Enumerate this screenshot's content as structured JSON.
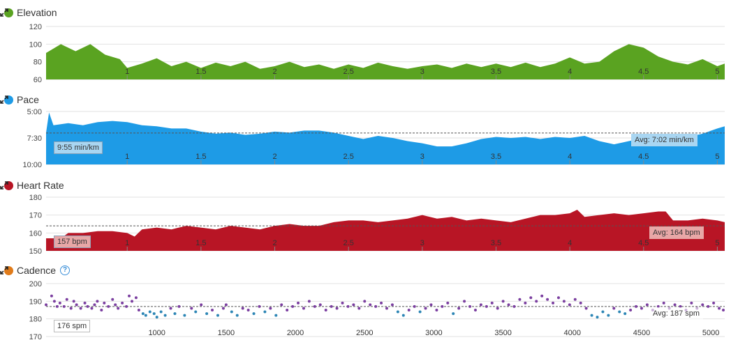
{
  "colors": {
    "elevation": "#5aa321",
    "pace": "#1e9be6",
    "heart_rate": "#b81525",
    "cadence_dot": "#e07b1a",
    "cadence_purple": "#7b3fa0",
    "cadence_blue": "#2d86b5"
  },
  "panels": {
    "elevation": {
      "title": "Elevation"
    },
    "pace": {
      "title": "Pace",
      "tooltip": "9:55 min/km",
      "avg_label": "Avg: 7:02 min/km"
    },
    "heart_rate": {
      "title": "Heart Rate",
      "tooltip": "157 bpm",
      "avg_label": "Avg: 164 bpm"
    },
    "cadence": {
      "title": "Cadence",
      "help": "?",
      "tooltip": "176 spm",
      "avg_label": "Avg: 187 spm"
    }
  },
  "chart_data": [
    {
      "type": "area",
      "title": "Elevation",
      "ylim": [
        60,
        120
      ],
      "yticks": [
        "120",
        "100",
        "80",
        "60"
      ],
      "xticks": [
        "1",
        "1.5",
        "2",
        "2.5",
        "3",
        "3.5",
        "4",
        "4.5",
        "5"
      ],
      "xlim": [
        0.45,
        5.05
      ],
      "x": [
        0.45,
        0.55,
        0.65,
        0.75,
        0.85,
        0.95,
        1.0,
        1.1,
        1.2,
        1.3,
        1.4,
        1.5,
        1.6,
        1.7,
        1.8,
        1.9,
        2.0,
        2.1,
        2.2,
        2.3,
        2.4,
        2.5,
        2.6,
        2.7,
        2.8,
        2.9,
        3.0,
        3.1,
        3.2,
        3.3,
        3.4,
        3.5,
        3.6,
        3.7,
        3.8,
        3.9,
        4.0,
        4.1,
        4.2,
        4.3,
        4.4,
        4.5,
        4.6,
        4.7,
        4.8,
        4.9,
        5.0,
        5.05
      ],
      "values": [
        90,
        100,
        92,
        100,
        88,
        83,
        73,
        78,
        84,
        75,
        80,
        73,
        79,
        75,
        80,
        72,
        75,
        80,
        74,
        77,
        72,
        77,
        73,
        79,
        75,
        72,
        75,
        77,
        73,
        78,
        74,
        78,
        74,
        79,
        74,
        78,
        85,
        78,
        80,
        92,
        100,
        96,
        86,
        80,
        77,
        83,
        75,
        78
      ]
    },
    {
      "type": "area",
      "title": "Pace",
      "ylim_labels": [
        "5:00",
        "7:30",
        "10:00"
      ],
      "ylim_minutes": [
        5.0,
        10.0
      ],
      "inverted": true,
      "average": "7:02",
      "xticks": [
        "1",
        "1.5",
        "2",
        "2.5",
        "3",
        "3.5",
        "4",
        "4.5",
        "5"
      ],
      "xlim": [
        0.45,
        5.05
      ],
      "x": [
        0.45,
        0.47,
        0.5,
        0.6,
        0.7,
        0.8,
        0.9,
        1.0,
        1.1,
        1.2,
        1.3,
        1.4,
        1.5,
        1.6,
        1.7,
        1.8,
        1.9,
        2.0,
        2.1,
        2.2,
        2.3,
        2.4,
        2.5,
        2.6,
        2.7,
        2.8,
        2.9,
        3.0,
        3.1,
        3.2,
        3.3,
        3.4,
        3.5,
        3.6,
        3.7,
        3.8,
        3.9,
        4.0,
        4.1,
        4.2,
        4.3,
        4.4,
        4.5,
        4.6,
        4.7,
        4.8,
        4.9,
        5.0,
        5.05
      ],
      "values": [
        7.0,
        5.1,
        6.3,
        6.1,
        6.3,
        6.0,
        5.9,
        6.0,
        6.3,
        6.4,
        6.6,
        6.6,
        6.9,
        7.1,
        7.0,
        7.2,
        7.1,
        6.9,
        7.0,
        6.8,
        6.8,
        7.0,
        7.3,
        7.6,
        7.3,
        7.5,
        7.8,
        8.0,
        8.3,
        8.3,
        8.0,
        7.6,
        7.4,
        7.5,
        7.4,
        7.6,
        7.4,
        7.5,
        7.3,
        7.8,
        8.1,
        7.8,
        7.5,
        7.4,
        7.5,
        7.4,
        7.1,
        6.6,
        6.4
      ]
    },
    {
      "type": "area",
      "title": "Heart Rate",
      "ylim": [
        150,
        180
      ],
      "yticks": [
        "180",
        "170",
        "160",
        "150"
      ],
      "average": 164,
      "xticks": [
        "1",
        "1.5",
        "2",
        "2.5",
        "3",
        "3.5",
        "4",
        "4.5",
        "5"
      ],
      "xlim": [
        0.45,
        5.05
      ],
      "x": [
        0.45,
        0.55,
        0.6,
        0.7,
        0.8,
        0.9,
        1.0,
        1.05,
        1.1,
        1.2,
        1.3,
        1.4,
        1.5,
        1.6,
        1.7,
        1.8,
        1.9,
        2.0,
        2.1,
        2.2,
        2.3,
        2.4,
        2.5,
        2.6,
        2.7,
        2.8,
        2.9,
        3.0,
        3.1,
        3.2,
        3.3,
        3.4,
        3.5,
        3.6,
        3.7,
        3.8,
        3.9,
        4.0,
        4.05,
        4.1,
        4.2,
        4.3,
        4.4,
        4.5,
        4.6,
        4.65,
        4.7,
        4.8,
        4.9,
        5.0,
        5.05
      ],
      "values": [
        157,
        157,
        160,
        160,
        161,
        161,
        160,
        158,
        162,
        163,
        162,
        164,
        163,
        162,
        164,
        163,
        162,
        164,
        165,
        164,
        164,
        166,
        167,
        167,
        166,
        167,
        168,
        170,
        168,
        169,
        167,
        168,
        167,
        166,
        168,
        170,
        170,
        171,
        173,
        169,
        170,
        171,
        170,
        171,
        172,
        172,
        167,
        167,
        168,
        167,
        166
      ]
    },
    {
      "type": "scatter",
      "title": "Cadence",
      "ylim": [
        170,
        200
      ],
      "yticks": [
        "200",
        "190",
        "180",
        "170"
      ],
      "average": 187,
      "xticks": [
        "1000",
        "1500",
        "2000",
        "2500",
        "3000",
        "3500",
        "4000",
        "4500",
        "5000"
      ],
      "xlim": [
        200,
        5100
      ],
      "x": [
        200,
        240,
        260,
        280,
        300,
        330,
        350,
        380,
        400,
        420,
        450,
        480,
        500,
        530,
        550,
        570,
        600,
        620,
        650,
        680,
        700,
        720,
        750,
        780,
        800,
        820,
        850,
        870,
        900,
        920,
        950,
        980,
        1000,
        1030,
        1060,
        1100,
        1130,
        1160,
        1200,
        1250,
        1280,
        1320,
        1360,
        1400,
        1440,
        1480,
        1500,
        1540,
        1580,
        1620,
        1660,
        1700,
        1740,
        1780,
        1820,
        1860,
        1900,
        1940,
        1980,
        2020,
        2060,
        2100,
        2140,
        2180,
        2220,
        2260,
        2300,
        2340,
        2380,
        2420,
        2460,
        2500,
        2540,
        2580,
        2620,
        2660,
        2700,
        2740,
        2780,
        2820,
        2860,
        2900,
        2940,
        2980,
        3020,
        3060,
        3100,
        3140,
        3180,
        3220,
        3260,
        3300,
        3340,
        3380,
        3420,
        3460,
        3500,
        3540,
        3580,
        3620,
        3660,
        3700,
        3740,
        3780,
        3820,
        3860,
        3900,
        3940,
        3980,
        4020,
        4060,
        4100,
        4140,
        4180,
        4220,
        4260,
        4300,
        4340,
        4380,
        4420,
        4460,
        4500,
        4540,
        4580,
        4620,
        4660,
        4700,
        4740,
        4780,
        4820,
        4860,
        4900,
        4940,
        4980,
        5020,
        5060,
        5090
      ],
      "values": [
        188,
        193,
        190,
        187,
        189,
        187,
        191,
        186,
        190,
        188,
        186,
        189,
        187,
        186,
        188,
        190,
        185,
        189,
        187,
        191,
        188,
        186,
        189,
        187,
        193,
        190,
        192,
        185,
        183,
        182,
        184,
        183,
        181,
        184,
        182,
        186,
        183,
        187,
        182,
        186,
        184,
        188,
        183,
        185,
        182,
        186,
        188,
        184,
        182,
        186,
        185,
        183,
        187,
        184,
        186,
        182,
        188,
        185,
        187,
        189,
        186,
        190,
        187,
        188,
        185,
        187,
        186,
        189,
        187,
        188,
        186,
        190,
        188,
        187,
        189,
        186,
        188,
        184,
        182,
        185,
        187,
        184,
        186,
        188,
        185,
        187,
        189,
        183,
        186,
        190,
        187,
        185,
        188,
        187,
        189,
        186,
        190,
        188,
        187,
        191,
        189,
        192,
        190,
        193,
        191,
        189,
        192,
        190,
        188,
        191,
        189,
        186,
        182,
        181,
        184,
        182,
        186,
        184,
        183,
        185,
        187,
        186,
        188,
        185,
        187,
        189,
        186,
        188,
        187,
        185,
        189,
        186,
        188,
        187,
        189,
        186,
        185
      ],
      "series_colors": [
        "purple",
        "blue"
      ]
    }
  ]
}
